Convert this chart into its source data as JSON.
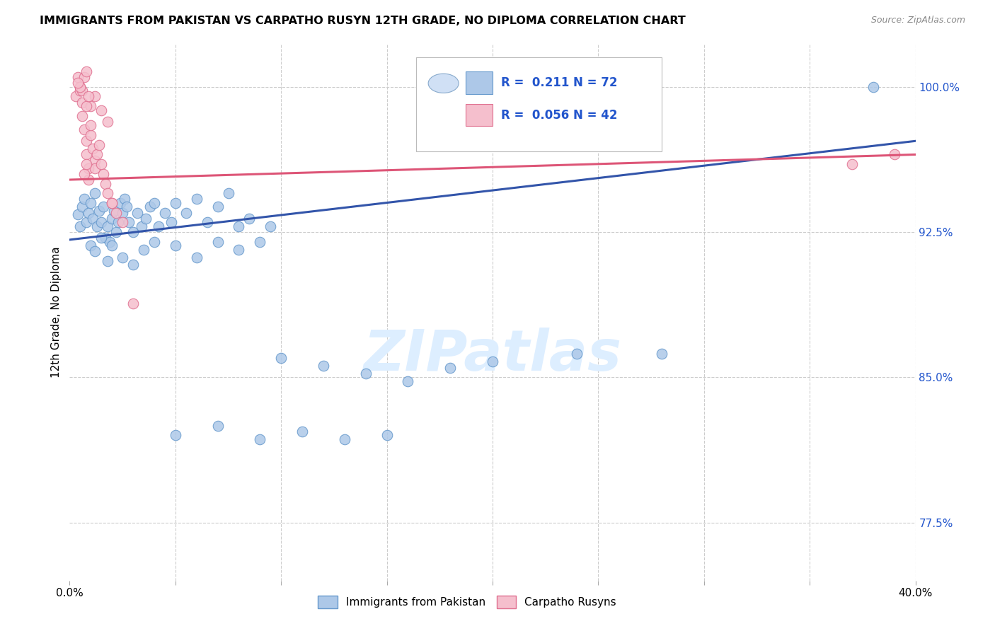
{
  "title": "IMMIGRANTS FROM PAKISTAN VS CARPATHO RUSYN 12TH GRADE, NO DIPLOMA CORRELATION CHART",
  "source": "Source: ZipAtlas.com",
  "ylabel": "12th Grade, No Diploma",
  "xmin": 0.0,
  "xmax": 0.4,
  "ymin": 0.745,
  "ymax": 1.022,
  "yticks": [
    0.775,
    0.85,
    0.925,
    1.0
  ],
  "ytick_labels": [
    "77.5%",
    "85.0%",
    "92.5%",
    "100.0%"
  ],
  "xticks": [
    0.0,
    0.05,
    0.1,
    0.15,
    0.2,
    0.25,
    0.3,
    0.35,
    0.4
  ],
  "blue_R": 0.211,
  "blue_N": 72,
  "pink_R": 0.056,
  "pink_N": 42,
  "blue_color": "#adc8e8",
  "blue_edge": "#6699cc",
  "pink_color": "#f5bfcd",
  "pink_edge": "#e07090",
  "blue_line_color": "#3355aa",
  "pink_line_color": "#dd5577",
  "blue_line_x0": 0.0,
  "blue_line_y0": 0.921,
  "blue_line_x1": 0.4,
  "blue_line_y1": 0.972,
  "pink_line_x0": 0.0,
  "pink_line_y0": 0.952,
  "pink_line_x1": 0.4,
  "pink_line_y1": 0.965,
  "watermark_color": "#ddeeff",
  "background_color": "#ffffff",
  "grid_color": "#cccccc",
  "blue_scatter_x": [
    0.004,
    0.005,
    0.006,
    0.007,
    0.008,
    0.009,
    0.01,
    0.011,
    0.012,
    0.013,
    0.014,
    0.015,
    0.016,
    0.017,
    0.018,
    0.019,
    0.02,
    0.021,
    0.022,
    0.023,
    0.024,
    0.025,
    0.026,
    0.027,
    0.028,
    0.03,
    0.032,
    0.034,
    0.036,
    0.038,
    0.04,
    0.042,
    0.045,
    0.048,
    0.05,
    0.055,
    0.06,
    0.065,
    0.07,
    0.075,
    0.08,
    0.085,
    0.09,
    0.095,
    0.01,
    0.012,
    0.015,
    0.018,
    0.02,
    0.025,
    0.03,
    0.035,
    0.04,
    0.05,
    0.06,
    0.07,
    0.08,
    0.1,
    0.12,
    0.14,
    0.16,
    0.18,
    0.2,
    0.24,
    0.28,
    0.05,
    0.07,
    0.09,
    0.11,
    0.13,
    0.15,
    0.38
  ],
  "blue_scatter_y": [
    0.934,
    0.928,
    0.938,
    0.942,
    0.93,
    0.935,
    0.94,
    0.932,
    0.945,
    0.928,
    0.936,
    0.93,
    0.938,
    0.922,
    0.928,
    0.92,
    0.932,
    0.936,
    0.925,
    0.93,
    0.94,
    0.935,
    0.942,
    0.938,
    0.93,
    0.925,
    0.935,
    0.928,
    0.932,
    0.938,
    0.94,
    0.928,
    0.935,
    0.93,
    0.94,
    0.935,
    0.942,
    0.93,
    0.938,
    0.945,
    0.928,
    0.932,
    0.92,
    0.928,
    0.918,
    0.915,
    0.922,
    0.91,
    0.918,
    0.912,
    0.908,
    0.916,
    0.92,
    0.918,
    0.912,
    0.92,
    0.916,
    0.86,
    0.856,
    0.852,
    0.848,
    0.855,
    0.858,
    0.862,
    0.862,
    0.82,
    0.825,
    0.818,
    0.822,
    0.818,
    0.82,
    1.0
  ],
  "pink_scatter_x": [
    0.003,
    0.004,
    0.005,
    0.005,
    0.006,
    0.006,
    0.007,
    0.008,
    0.008,
    0.009,
    0.009,
    0.01,
    0.01,
    0.011,
    0.012,
    0.012,
    0.013,
    0.014,
    0.015,
    0.016,
    0.017,
    0.018,
    0.02,
    0.022,
    0.01,
    0.012,
    0.015,
    0.018,
    0.008,
    0.006,
    0.007,
    0.008,
    0.009,
    0.005,
    0.004,
    0.007,
    0.008,
    0.02,
    0.025,
    0.03,
    0.37,
    0.39
  ],
  "pink_scatter_y": [
    0.995,
    1.005,
    1.0,
    0.998,
    0.992,
    0.985,
    0.978,
    0.972,
    0.965,
    0.958,
    0.952,
    0.975,
    0.98,
    0.968,
    0.962,
    0.958,
    0.965,
    0.97,
    0.96,
    0.955,
    0.95,
    0.945,
    0.94,
    0.935,
    0.99,
    0.995,
    0.988,
    0.982,
    0.99,
    0.998,
    1.005,
    1.008,
    0.995,
    1.0,
    1.002,
    0.955,
    0.96,
    0.94,
    0.93,
    0.888,
    0.96,
    0.965
  ]
}
